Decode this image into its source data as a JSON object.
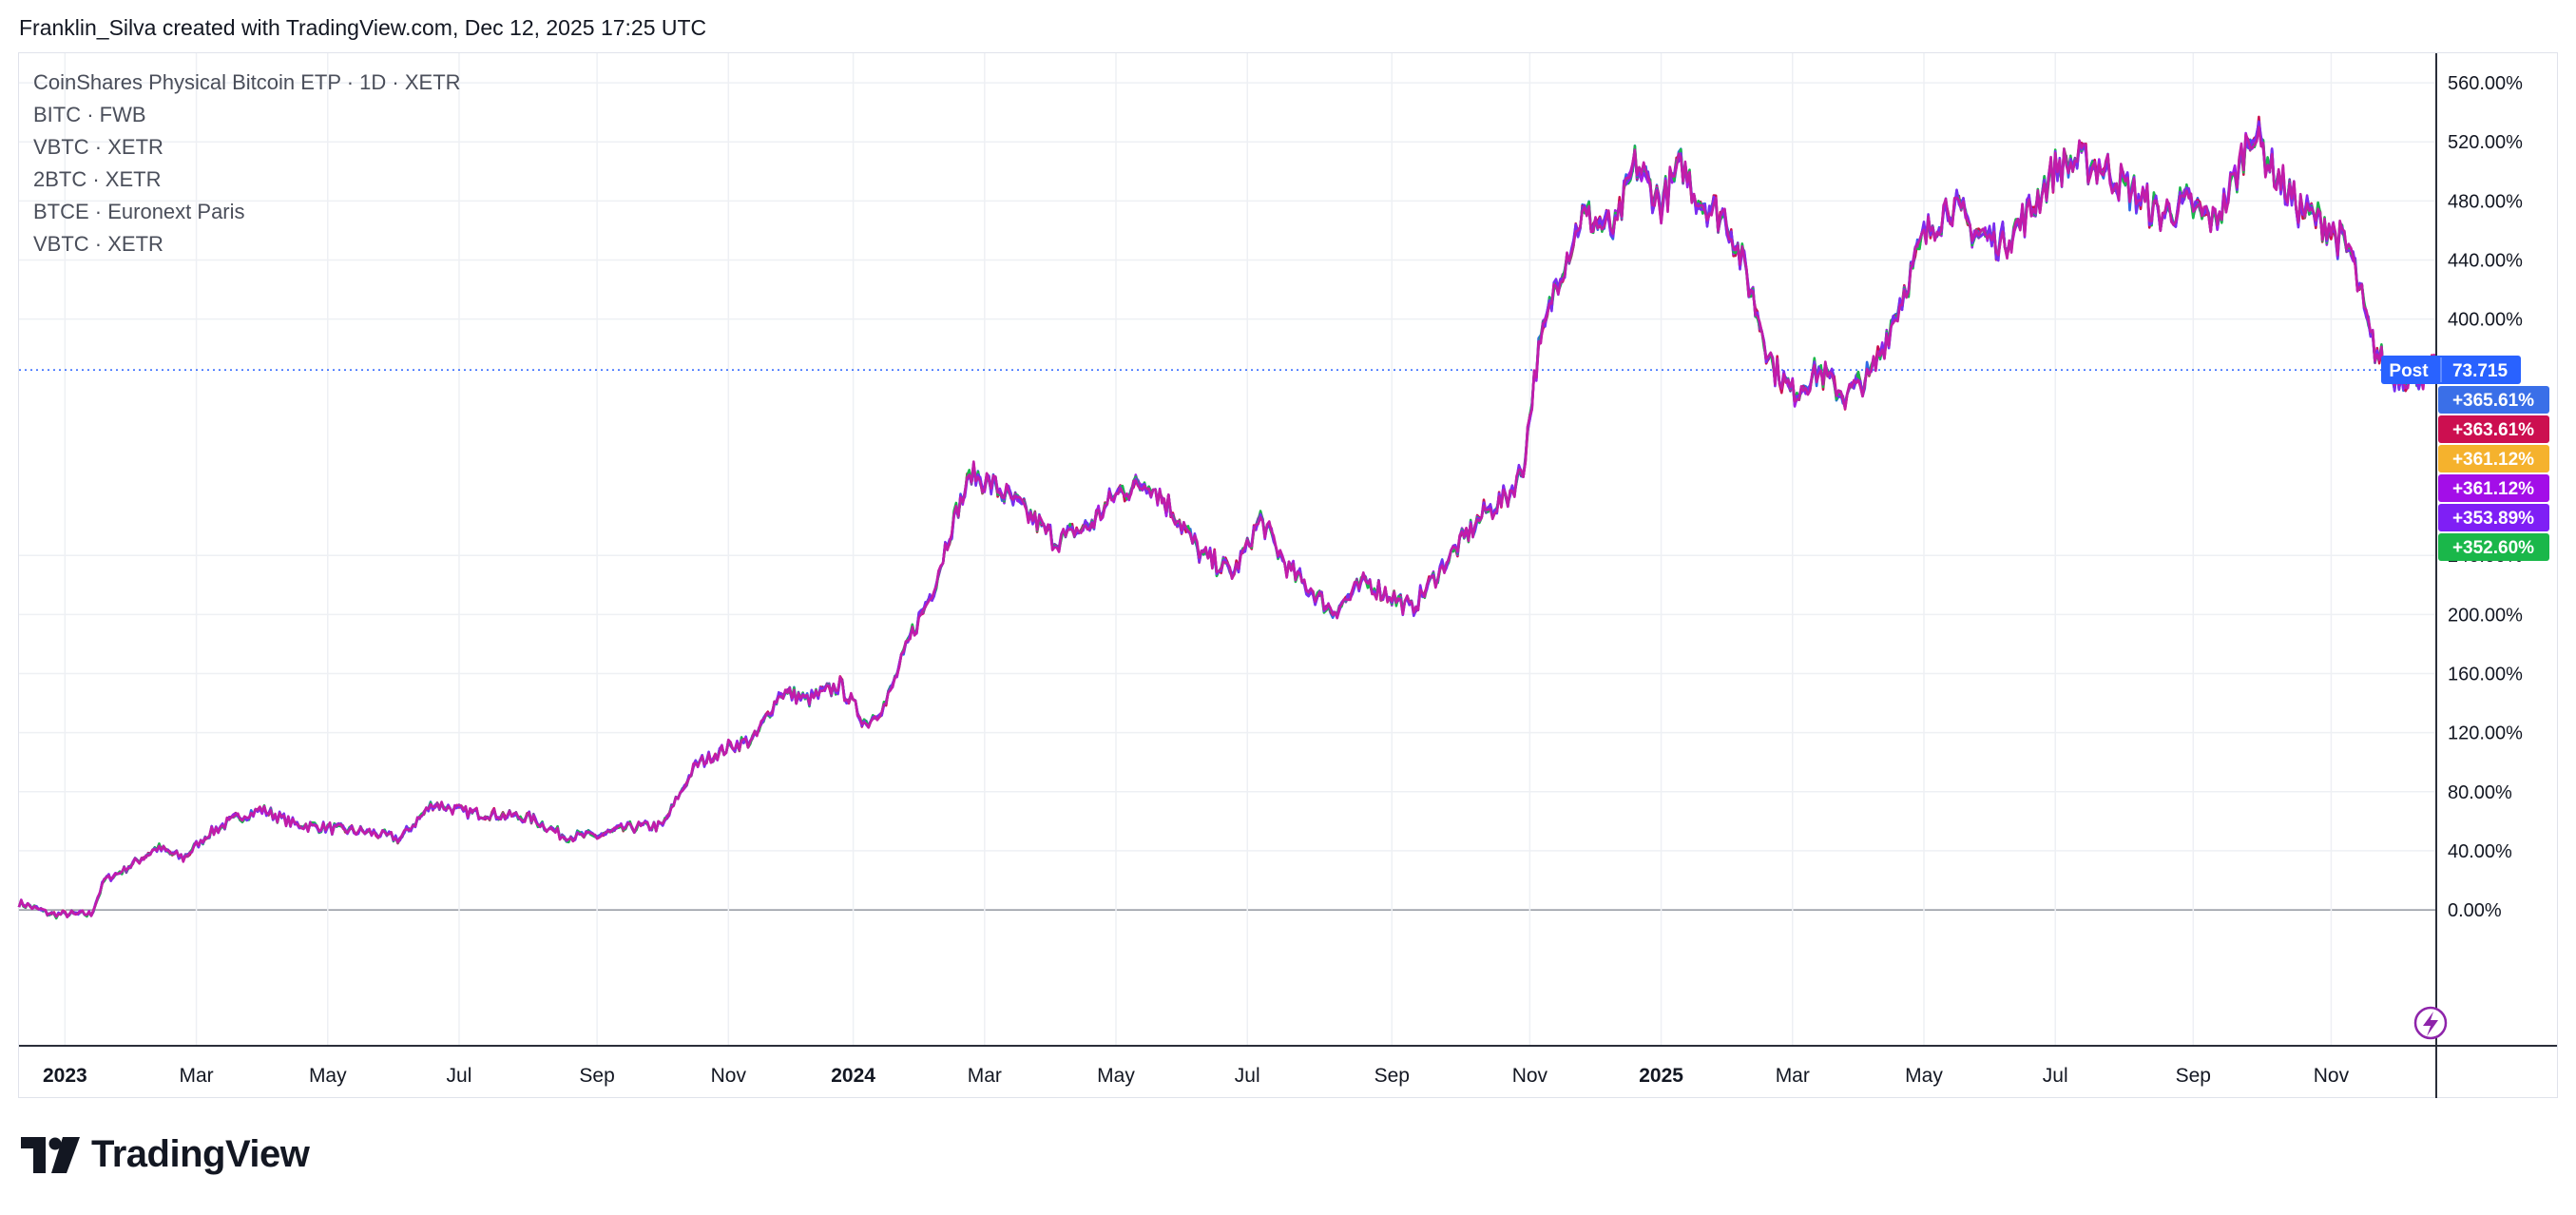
{
  "header": {
    "caption": "Franklin_Silva created with TradingView.com, Dec 12, 2025 17:25 UTC"
  },
  "legend": [
    "CoinShares Physical Bitcoin ETP · 1D · XETR",
    "BITC · FWB",
    "VBTC · XETR",
    "2BTC · XETR",
    "BTCE · Euronext Paris",
    "VBTC · XETR"
  ],
  "footer": {
    "brand": "TradingView",
    "logo_icon": "tradingview-logo-icon"
  },
  "price_tag": {
    "label": "Post",
    "value": "73.715",
    "color": "#2962ff"
  },
  "widgets": {
    "lightning_icon": "lightning-icon"
  },
  "chart_data": {
    "type": "line",
    "ylabel": "",
    "y_unit": "%",
    "ylim": [
      -92,
      580
    ],
    "y_ticks": [
      "560.00%",
      "520.00%",
      "480.00%",
      "440.00%",
      "400.00%",
      "240.00%",
      "200.00%",
      "160.00%",
      "120.00%",
      "80.00%",
      "40.00%",
      "0.00%"
    ],
    "x_labels": [
      {
        "text": "2023",
        "year": true,
        "t": 0.5
      },
      {
        "text": "Mar",
        "year": false,
        "t": 2.5
      },
      {
        "text": "May",
        "year": false,
        "t": 4.5
      },
      {
        "text": "Jul",
        "year": false,
        "t": 6.5
      },
      {
        "text": "Sep",
        "year": false,
        "t": 8.6
      },
      {
        "text": "Nov",
        "year": false,
        "t": 10.6
      },
      {
        "text": "2024",
        "year": true,
        "t": 12.5
      },
      {
        "text": "Mar",
        "year": false,
        "t": 14.5
      },
      {
        "text": "May",
        "year": false,
        "t": 16.5
      },
      {
        "text": "Jul",
        "year": false,
        "t": 18.5
      },
      {
        "text": "Sep",
        "year": false,
        "t": 20.7
      },
      {
        "text": "Nov",
        "year": false,
        "t": 22.8
      },
      {
        "text": "2025",
        "year": true,
        "t": 24.8
      },
      {
        "text": "Mar",
        "year": false,
        "t": 26.8
      },
      {
        "text": "May",
        "year": false,
        "t": 28.8
      },
      {
        "text": "Jul",
        "year": false,
        "t": 30.8
      },
      {
        "text": "Sep",
        "year": false,
        "t": 32.9
      },
      {
        "text": "Nov",
        "year": false,
        "t": 35.0
      }
    ],
    "x_range": [
      -0.2,
      36.6
    ],
    "baseline_value": 0,
    "last_value_line": 365.61,
    "value_tags": [
      {
        "text": "+365.61%",
        "value": 365.61,
        "color": "#3a6fe8"
      },
      {
        "text": "+363.61%",
        "value": 363.61,
        "color": "#cc0f50"
      },
      {
        "text": "+361.12%",
        "value": 361.12,
        "color": "#f5b22d"
      },
      {
        "text": "+361.12%",
        "value": 361.12,
        "color": "#a30ee8"
      },
      {
        "text": "+353.89%",
        "value": 353.89,
        "color": "#7f1ff5"
      },
      {
        "text": "+352.60%",
        "value": 352.6,
        "color": "#1ab74a"
      }
    ],
    "series_colors": [
      "#2e6ae6",
      "#cc0f50",
      "#a51ce6",
      "#1ab74a",
      "#7b2cf0",
      "#c21ca8"
    ],
    "anchors": [
      [
        -0.2,
        5
      ],
      [
        0.3,
        -3
      ],
      [
        0.9,
        -3
      ],
      [
        1.1,
        20
      ],
      [
        1.5,
        30
      ],
      [
        1.9,
        42
      ],
      [
        2.3,
        35
      ],
      [
        2.7,
        52
      ],
      [
        3.1,
        62
      ],
      [
        3.5,
        68
      ],
      [
        4.0,
        58
      ],
      [
        4.6,
        55
      ],
      [
        5.2,
        52
      ],
      [
        5.6,
        48
      ],
      [
        6.1,
        72
      ],
      [
        6.6,
        66
      ],
      [
        7.2,
        64
      ],
      [
        7.6,
        62
      ],
      [
        8.1,
        50
      ],
      [
        8.6,
        50
      ],
      [
        9.1,
        56
      ],
      [
        9.6,
        57
      ],
      [
        10.1,
        98
      ],
      [
        10.6,
        110
      ],
      [
        11.0,
        116
      ],
      [
        11.4,
        148
      ],
      [
        11.8,
        142
      ],
      [
        12.3,
        152
      ],
      [
        12.7,
        126
      ],
      [
        13.0,
        140
      ],
      [
        13.4,
        188
      ],
      [
        13.7,
        215
      ],
      [
        14.0,
        260
      ],
      [
        14.3,
        295
      ],
      [
        14.7,
        285
      ],
      [
        15.1,
        270
      ],
      [
        15.6,
        250
      ],
      [
        16.1,
        260
      ],
      [
        16.5,
        282
      ],
      [
        17.0,
        290
      ],
      [
        17.4,
        268
      ],
      [
        17.8,
        240
      ],
      [
        18.3,
        228
      ],
      [
        18.7,
        265
      ],
      [
        19.1,
        232
      ],
      [
        19.5,
        215
      ],
      [
        19.8,
        202
      ],
      [
        20.3,
        222
      ],
      [
        20.7,
        212
      ],
      [
        21.0,
        204
      ],
      [
        21.4,
        228
      ],
      [
        21.8,
        252
      ],
      [
        22.1,
        268
      ],
      [
        22.5,
        282
      ],
      [
        22.7,
        300
      ],
      [
        22.9,
        370
      ],
      [
        23.2,
        425
      ],
      [
        23.6,
        470
      ],
      [
        24.1,
        460
      ],
      [
        24.4,
        505
      ],
      [
        24.8,
        478
      ],
      [
        25.1,
        503
      ],
      [
        25.4,
        480
      ],
      [
        25.8,
        468
      ],
      [
        26.1,
        430
      ],
      [
        26.5,
        368
      ],
      [
        26.8,
        350
      ],
      [
        27.2,
        365
      ],
      [
        27.6,
        348
      ],
      [
        28.0,
        362
      ],
      [
        28.4,
        408
      ],
      [
        28.8,
        455
      ],
      [
        29.2,
        478
      ],
      [
        29.6,
        458
      ],
      [
        30.0,
        452
      ],
      [
        30.4,
        472
      ],
      [
        30.8,
        502
      ],
      [
        31.2,
        508
      ],
      [
        31.6,
        500
      ],
      [
        32.0,
        485
      ],
      [
        32.4,
        470
      ],
      [
        32.8,
        478
      ],
      [
        33.2,
        465
      ],
      [
        33.5,
        490
      ],
      [
        33.8,
        530
      ],
      [
        34.1,
        502
      ],
      [
        34.5,
        475
      ],
      [
        34.9,
        465
      ],
      [
        35.3,
        445
      ],
      [
        35.6,
        385
      ],
      [
        35.9,
        362
      ],
      [
        36.2,
        362
      ],
      [
        36.6,
        365
      ]
    ]
  }
}
